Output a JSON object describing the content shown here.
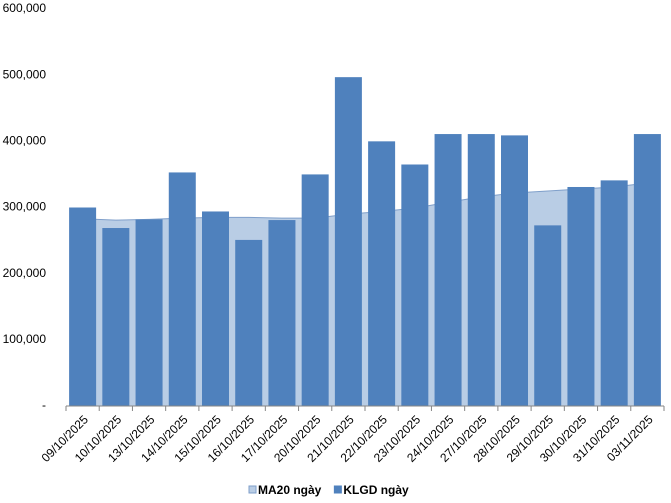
{
  "chart_data": {
    "type": "bar",
    "categories": [
      "09/10/2025",
      "10/10/2025",
      "13/10/2025",
      "14/10/2025",
      "15/10/2025",
      "16/10/2025",
      "17/10/2025",
      "20/10/2025",
      "21/10/2025",
      "22/10/2025",
      "23/10/2025",
      "24/10/2025",
      "27/10/2025",
      "28/10/2025",
      "29/10/2025",
      "30/10/2025",
      "31/10/2025",
      "03/11/2025"
    ],
    "series": [
      {
        "name": "MA20 ngày",
        "type": "area",
        "color": "#b9cde5",
        "values": [
          283000,
          281000,
          282000,
          284000,
          285000,
          285000,
          284000,
          284000,
          290000,
          294000,
          299000,
          308000,
          316000,
          322000,
          325000,
          328000,
          331000,
          337000
        ]
      },
      {
        "name": "KLGD ngày",
        "type": "bar",
        "color": "#4f81bd",
        "values": [
          300000,
          269000,
          282000,
          353000,
          294000,
          251000,
          281000,
          350000,
          497000,
          400000,
          365000,
          411000,
          411000,
          409000,
          273000,
          331000,
          341000,
          411000
        ]
      }
    ],
    "ylim": [
      0,
      600000
    ],
    "yticks": [
      {
        "value": 0,
        "label": "-"
      },
      {
        "value": 100000,
        "label": "100,000"
      },
      {
        "value": 200000,
        "label": "200,000"
      },
      {
        "value": 300000,
        "label": "300,000"
      },
      {
        "value": 400000,
        "label": "400,000"
      },
      {
        "value": 500000,
        "label": "500,000"
      },
      {
        "value": 600000,
        "label": "600,000"
      }
    ],
    "grid": false,
    "legend": "bottom"
  }
}
